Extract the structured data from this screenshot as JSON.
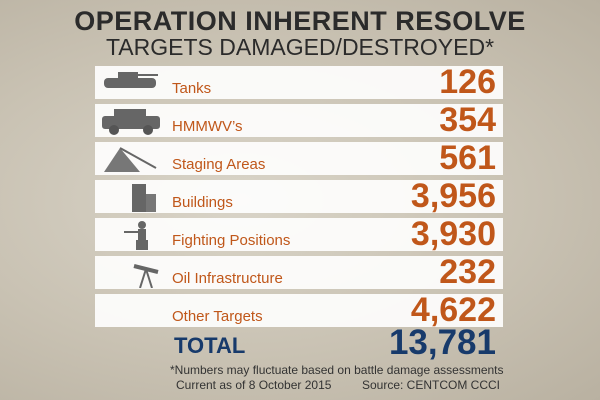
{
  "header": {
    "title": "OPERATION INHERENT RESOLVE",
    "subtitle": "TARGETS DAMAGED/DESTROYED*"
  },
  "rows": [
    {
      "label": "Tanks",
      "value": "126"
    },
    {
      "label": "HMMWV’s",
      "value": "354"
    },
    {
      "label": "Staging Areas",
      "value": "561"
    },
    {
      "label": "Buildings",
      "value": "3,956"
    },
    {
      "label": "Fighting Positions",
      "value": "3,930"
    },
    {
      "label": "Oil Infrastructure",
      "value": "232"
    },
    {
      "label": "Other Targets",
      "value": "4,622"
    }
  ],
  "total": {
    "label": "TOTAL",
    "value": "13,781"
  },
  "footer": {
    "note": "*Numbers may fluctuate based on battle damage assessments",
    "date": "Current as of 8 October 2015",
    "source": "Source: CENTCOM CCCI"
  }
}
